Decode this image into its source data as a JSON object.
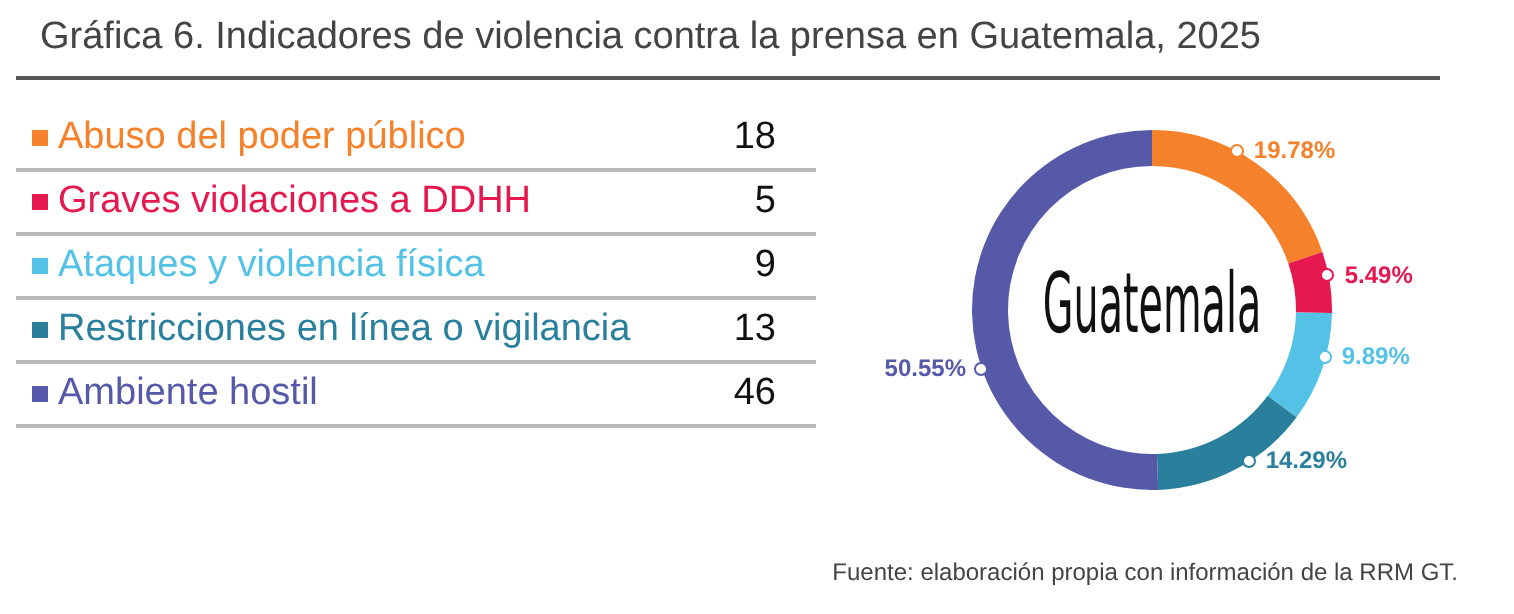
{
  "chart_data": {
    "type": "donut",
    "title": "Gráfica 6. Indicadores de violencia contra la prensa en Guatemala, 2025",
    "categories": [
      "Abuso del poder público",
      "Graves violaciones a DDHH",
      "Ataques y violencia física",
      "Restricciones en línea o vigilancia",
      "Ambiente hostil"
    ],
    "values": [
      19.78,
      5.49,
      9.89,
      14.29,
      50.55
    ],
    "colors": [
      "#f5812a",
      "#e5194f",
      "#54c2e6",
      "#2a7f9c",
      "#5659a8"
    ],
    "value_labels": [
      "19.78%",
      "5.49%",
      "9.89%",
      "14.29%",
      "50.55%"
    ],
    "legend": "left",
    "annotations": [
      "Guatemala",
      "Fuente: elaboración propia con información de la RRM GT.",
      {
        "text": "18",
        "x": "Abuso del poder público"
      },
      {
        "text": "5",
        "x": "Graves violaciones a DDHH"
      },
      {
        "text": "9",
        "x": "Ataques y violencia física"
      },
      {
        "text": "13",
        "x": "Restricciones en línea o vigilancia"
      },
      {
        "text": "46",
        "x": "Ambiente hostil"
      }
    ]
  }
}
